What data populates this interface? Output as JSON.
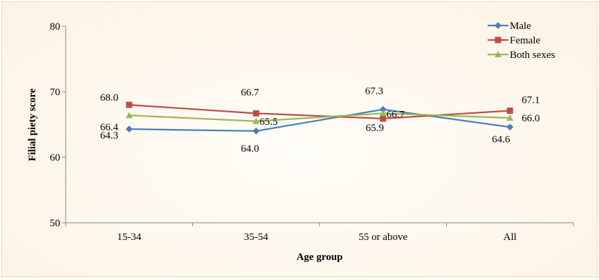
{
  "chart_data": {
    "type": "line",
    "xlabel": "Age group",
    "ylabel": "Filial piety score",
    "categories": [
      "15-34",
      "35-54",
      "55 or above",
      "All"
    ],
    "ylim": [
      50,
      80
    ],
    "yticks": [
      50,
      60,
      70,
      80
    ],
    "grid": false,
    "legend_position": "top-right",
    "series": [
      {
        "name": "Male",
        "values": [
          64.3,
          64.0,
          67.3,
          64.6
        ],
        "color": "#4a7ebb",
        "marker": "diamond"
      },
      {
        "name": "Female",
        "values": [
          68.0,
          66.7,
          65.9,
          67.1
        ],
        "color": "#be4b48",
        "marker": "square"
      },
      {
        "name": "Both sexes",
        "values": [
          66.4,
          65.5,
          66.7,
          66.0
        ],
        "color": "#98b954",
        "marker": "triangle"
      }
    ]
  }
}
